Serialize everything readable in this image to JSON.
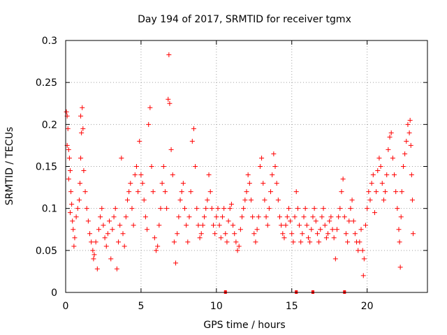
{
  "chart_data": {
    "type": "scatter",
    "title": "Day 194 of 2017, SRMTID for receiver tgmx",
    "xlabel": "GPS time / hours",
    "ylabel": "SRMTID / TECUs",
    "xlim": [
      0,
      24
    ],
    "ylim": [
      0,
      0.3
    ],
    "xticks": [
      0,
      5,
      10,
      15,
      20
    ],
    "yticks": [
      0,
      0.05,
      0.1,
      0.15,
      0.2,
      0.25,
      0.3
    ],
    "xtick_labels": [
      "0",
      "5",
      "10",
      "15",
      "20"
    ],
    "ytick_labels": [
      "0",
      "0.05",
      "0.1",
      "0.15",
      "0.2",
      "0.25",
      "0.3"
    ],
    "grid": true,
    "legend": "none",
    "marker": "plus",
    "series_color": "#ff0000",
    "gap_markers_x": [
      10.6,
      15.3,
      16.4,
      18.5
    ],
    "series": [
      {
        "name": "SRMTID",
        "points": [
          [
            0.05,
            0.215
          ],
          [
            0.1,
            0.21
          ],
          [
            0.15,
            0.195
          ],
          [
            0.1,
            0.175
          ],
          [
            0.2,
            0.17
          ],
          [
            0.25,
            0.16
          ],
          [
            0.3,
            0.145
          ],
          [
            0.2,
            0.135
          ],
          [
            0.35,
            0.12
          ],
          [
            0.4,
            0.105
          ],
          [
            0.3,
            0.095
          ],
          [
            0.45,
            0.085
          ],
          [
            0.5,
            0.075
          ],
          [
            0.6,
            0.065
          ],
          [
            0.55,
            0.055
          ],
          [
            0.7,
            0.09
          ],
          [
            0.8,
            0.1
          ],
          [
            0.9,
            0.11
          ],
          [
            0.95,
            0.13
          ],
          [
            1.0,
            0.16
          ],
          [
            1.05,
            0.19
          ],
          [
            1.1,
            0.22
          ],
          [
            1.0,
            0.21
          ],
          [
            1.15,
            0.195
          ],
          [
            1.2,
            0.145
          ],
          [
            1.3,
            0.12
          ],
          [
            1.4,
            0.1
          ],
          [
            1.5,
            0.085
          ],
          [
            1.6,
            0.07
          ],
          [
            1.7,
            0.06
          ],
          [
            1.8,
            0.05
          ],
          [
            1.85,
            0.04
          ],
          [
            1.9,
            0.045
          ],
          [
            2.0,
            0.06
          ],
          [
            2.1,
            0.028
          ],
          [
            2.2,
            0.075
          ],
          [
            2.3,
            0.09
          ],
          [
            2.4,
            0.1
          ],
          [
            2.5,
            0.08
          ],
          [
            2.6,
            0.065
          ],
          [
            2.7,
            0.055
          ],
          [
            2.8,
            0.07
          ],
          [
            2.9,
            0.085
          ],
          [
            3.0,
            0.04
          ],
          [
            3.1,
            0.075
          ],
          [
            3.2,
            0.09
          ],
          [
            3.3,
            0.1
          ],
          [
            3.4,
            0.028
          ],
          [
            3.5,
            0.06
          ],
          [
            3.6,
            0.08
          ],
          [
            3.7,
            0.16
          ],
          [
            3.8,
            0.07
          ],
          [
            3.9,
            0.055
          ],
          [
            4.0,
            0.09
          ],
          [
            4.1,
            0.11
          ],
          [
            4.2,
            0.12
          ],
          [
            4.3,
            0.13
          ],
          [
            4.4,
            0.1
          ],
          [
            4.5,
            0.08
          ],
          [
            4.6,
            0.14
          ],
          [
            4.7,
            0.15
          ],
          [
            4.8,
            0.12
          ],
          [
            4.9,
            0.18
          ],
          [
            5.0,
            0.14
          ],
          [
            5.1,
            0.13
          ],
          [
            5.2,
            0.11
          ],
          [
            5.3,
            0.09
          ],
          [
            5.4,
            0.075
          ],
          [
            5.5,
            0.2
          ],
          [
            5.6,
            0.22
          ],
          [
            5.7,
            0.15
          ],
          [
            5.8,
            0.12
          ],
          [
            5.9,
            0.065
          ],
          [
            6.0,
            0.05
          ],
          [
            6.1,
            0.055
          ],
          [
            6.2,
            0.08
          ],
          [
            6.3,
            0.1
          ],
          [
            6.4,
            0.13
          ],
          [
            6.5,
            0.15
          ],
          [
            6.6,
            0.12
          ],
          [
            6.7,
            0.1
          ],
          [
            6.8,
            0.23
          ],
          [
            6.85,
            0.283
          ],
          [
            6.9,
            0.225
          ],
          [
            7.0,
            0.17
          ],
          [
            7.1,
            0.14
          ],
          [
            7.2,
            0.06
          ],
          [
            7.3,
            0.035
          ],
          [
            7.4,
            0.07
          ],
          [
            7.5,
            0.09
          ],
          [
            7.6,
            0.11
          ],
          [
            7.7,
            0.12
          ],
          [
            7.8,
            0.13
          ],
          [
            7.9,
            0.1
          ],
          [
            8.0,
            0.08
          ],
          [
            8.1,
            0.06
          ],
          [
            8.2,
            0.09
          ],
          [
            8.3,
            0.12
          ],
          [
            8.4,
            0.18
          ],
          [
            8.5,
            0.195
          ],
          [
            8.6,
            0.15
          ],
          [
            8.7,
            0.1
          ],
          [
            8.8,
            0.08
          ],
          [
            8.9,
            0.065
          ],
          [
            9.0,
            0.07
          ],
          [
            9.1,
            0.08
          ],
          [
            9.2,
            0.09
          ],
          [
            9.3,
            0.1
          ],
          [
            9.4,
            0.11
          ],
          [
            9.5,
            0.14
          ],
          [
            9.6,
            0.12
          ],
          [
            9.7,
            0.1
          ],
          [
            9.8,
            0.08
          ],
          [
            9.9,
            0.07
          ],
          [
            10.0,
            0.09
          ],
          [
            10.1,
            0.1
          ],
          [
            10.2,
            0.08
          ],
          [
            10.3,
            0.065
          ],
          [
            10.4,
            0.09
          ],
          [
            10.5,
            0.1
          ],
          [
            10.6,
            0.07
          ],
          [
            10.7,
            0.06
          ],
          [
            10.8,
            0.085
          ],
          [
            10.9,
            0.1
          ],
          [
            11.0,
            0.105
          ],
          [
            11.1,
            0.08
          ],
          [
            11.2,
            0.07
          ],
          [
            11.3,
            0.06
          ],
          [
            11.4,
            0.05
          ],
          [
            11.5,
            0.055
          ],
          [
            11.6,
            0.075
          ],
          [
            11.7,
            0.09
          ],
          [
            11.8,
            0.1
          ],
          [
            11.9,
            0.11
          ],
          [
            12.0,
            0.12
          ],
          [
            12.1,
            0.14
          ],
          [
            12.2,
            0.13
          ],
          [
            12.3,
            0.11
          ],
          [
            12.4,
            0.09
          ],
          [
            12.5,
            0.07
          ],
          [
            12.6,
            0.06
          ],
          [
            12.7,
            0.075
          ],
          [
            12.8,
            0.09
          ],
          [
            12.9,
            0.15
          ],
          [
            13.0,
            0.16
          ],
          [
            13.1,
            0.13
          ],
          [
            13.2,
            0.11
          ],
          [
            13.3,
            0.09
          ],
          [
            13.4,
            0.08
          ],
          [
            13.5,
            0.1
          ],
          [
            13.6,
            0.12
          ],
          [
            13.7,
            0.14
          ],
          [
            13.8,
            0.165
          ],
          [
            13.9,
            0.15
          ],
          [
            14.0,
            0.13
          ],
          [
            14.1,
            0.11
          ],
          [
            14.2,
            0.09
          ],
          [
            14.3,
            0.08
          ],
          [
            14.4,
            0.07
          ],
          [
            14.5,
            0.065
          ],
          [
            14.6,
            0.08
          ],
          [
            14.7,
            0.09
          ],
          [
            14.8,
            0.1
          ],
          [
            14.9,
            0.085
          ],
          [
            15.0,
            0.07
          ],
          [
            15.1,
            0.06
          ],
          [
            15.2,
            0.09
          ],
          [
            15.3,
            0.12
          ],
          [
            15.4,
            0.1
          ],
          [
            15.5,
            0.08
          ],
          [
            15.6,
            0.06
          ],
          [
            15.7,
            0.07
          ],
          [
            15.8,
            0.09
          ],
          [
            15.9,
            0.1
          ],
          [
            16.0,
            0.08
          ],
          [
            16.1,
            0.065
          ],
          [
            16.2,
            0.06
          ],
          [
            16.3,
            0.075
          ],
          [
            16.4,
            0.09
          ],
          [
            16.5,
            0.1
          ],
          [
            16.6,
            0.085
          ],
          [
            16.7,
            0.07
          ],
          [
            16.8,
            0.06
          ],
          [
            16.9,
            0.075
          ],
          [
            17.0,
            0.09
          ],
          [
            17.1,
            0.1
          ],
          [
            17.2,
            0.08
          ],
          [
            17.3,
            0.065
          ],
          [
            17.4,
            0.07
          ],
          [
            17.5,
            0.085
          ],
          [
            17.6,
            0.09
          ],
          [
            17.7,
            0.075
          ],
          [
            17.8,
            0.065
          ],
          [
            17.9,
            0.04
          ],
          [
            18.0,
            0.075
          ],
          [
            18.1,
            0.09
          ],
          [
            18.2,
            0.1
          ],
          [
            18.3,
            0.12
          ],
          [
            18.4,
            0.135
          ],
          [
            18.5,
            0.09
          ],
          [
            18.6,
            0.07
          ],
          [
            18.7,
            0.06
          ],
          [
            18.8,
            0.085
          ],
          [
            18.9,
            0.1
          ],
          [
            19.0,
            0.11
          ],
          [
            19.1,
            0.085
          ],
          [
            19.2,
            0.07
          ],
          [
            19.3,
            0.06
          ],
          [
            19.4,
            0.05
          ],
          [
            19.5,
            0.06
          ],
          [
            19.6,
            0.075
          ],
          [
            19.7,
            0.05
          ],
          [
            19.75,
            0.02
          ],
          [
            19.8,
            0.04
          ],
          [
            19.9,
            0.08
          ],
          [
            20.0,
            0.1
          ],
          [
            20.1,
            0.12
          ],
          [
            20.2,
            0.11
          ],
          [
            20.3,
            0.13
          ],
          [
            20.4,
            0.14
          ],
          [
            20.5,
            0.095
          ],
          [
            20.6,
            0.12
          ],
          [
            20.7,
            0.145
          ],
          [
            20.8,
            0.16
          ],
          [
            20.9,
            0.15
          ],
          [
            21.0,
            0.13
          ],
          [
            21.1,
            0.11
          ],
          [
            21.2,
            0.12
          ],
          [
            21.3,
            0.14
          ],
          [
            21.4,
            0.17
          ],
          [
            21.5,
            0.185
          ],
          [
            21.6,
            0.19
          ],
          [
            21.7,
            0.16
          ],
          [
            21.8,
            0.14
          ],
          [
            21.9,
            0.12
          ],
          [
            22.0,
            0.1
          ],
          [
            22.1,
            0.075
          ],
          [
            22.15,
            0.06
          ],
          [
            22.2,
            0.03
          ],
          [
            22.25,
            0.09
          ],
          [
            22.3,
            0.12
          ],
          [
            22.4,
            0.15
          ],
          [
            22.5,
            0.165
          ],
          [
            22.6,
            0.18
          ],
          [
            22.7,
            0.2
          ],
          [
            22.8,
            0.19
          ],
          [
            22.85,
            0.205
          ],
          [
            22.9,
            0.175
          ],
          [
            22.95,
            0.14
          ],
          [
            23.0,
            0.11
          ],
          [
            23.05,
            0.07
          ]
        ]
      }
    ]
  }
}
